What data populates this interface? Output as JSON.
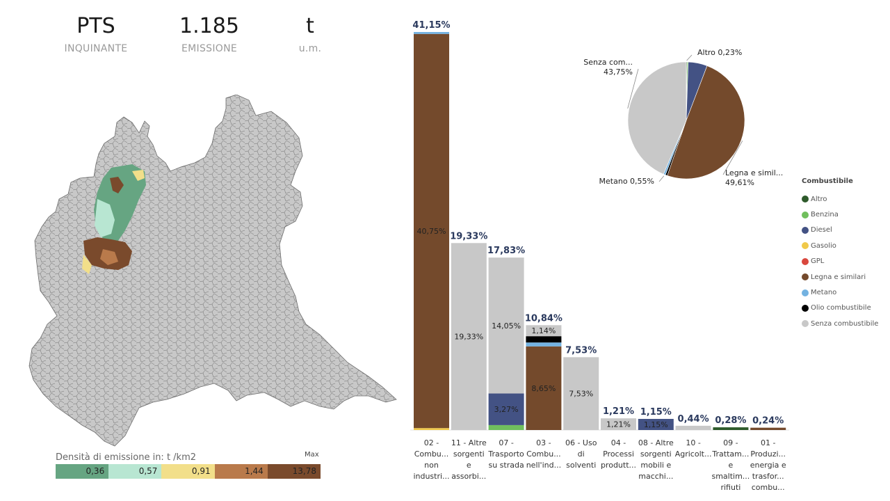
{
  "kpis": [
    {
      "value": "PTS",
      "label": "INQUINANTE"
    },
    {
      "value": "1.185",
      "label": "EMISSIONE"
    },
    {
      "value": "t",
      "label": "u.m."
    }
  ],
  "density_legend": {
    "title": "Densità di emissione in:  t /km2",
    "max_label": "Max",
    "bins": [
      {
        "value": "0,36",
        "color": "#66a582"
      },
      {
        "value": "0,57",
        "color": "#b8e6d2"
      },
      {
        "value": "0,91",
        "color": "#f2df8a"
      },
      {
        "value": "1,44",
        "color": "#b97a4b"
      },
      {
        "value": "13,78",
        "color": "#7a4a2c"
      }
    ]
  },
  "colors": {
    "Altro": "#2e5a2b",
    "Benzina": "#70bf5d",
    "Diesel": "#435284",
    "Gasolio": "#f0c94a",
    "GPL": "#d9473d",
    "Legna e similari": "#744a2c",
    "Metano": "#73b2e1",
    "Olio combustibile": "#000000",
    "Senza combustibile": "#c8c8c8"
  },
  "combustibile_legend": {
    "title": "Combustibile",
    "items": [
      "Altro",
      "Benzina",
      "Diesel",
      "Gasolio",
      "GPL",
      "Legna e similari",
      "Metano",
      "Olio combustibile",
      "Senza combustibile"
    ]
  },
  "chart_data": [
    {
      "type": "bar",
      "stacked": true,
      "ylim": [
        0,
        41.15
      ],
      "categories": [
        [
          "02 -",
          "Combu...",
          "non",
          "industri..."
        ],
        [
          "11 - Altre",
          "sorgenti",
          "e",
          "assorbi..."
        ],
        [
          "07 -",
          "Trasporto",
          "su strada"
        ],
        [
          "03 -",
          "Combu...",
          "nell'ind..."
        ],
        [
          "06 - Uso",
          "di",
          "solventi"
        ],
        [
          "04 -",
          "Processi",
          "produtt..."
        ],
        [
          "08 - Altre",
          "sorgenti",
          "mobili e",
          "macchi..."
        ],
        [
          "10 -",
          "Agricolt..."
        ],
        [
          "09 -",
          "Trattam...",
          "e",
          "smaltim...",
          "rifiuti"
        ],
        [
          "01 -",
          "Produzi...",
          "energia e",
          "trasfor...",
          "combu..."
        ]
      ],
      "totals": [
        "41,15%",
        "19,33%",
        "17,83%",
        "10,84%",
        "7,53%",
        "1,21%",
        "1,15%",
        "0,44%",
        "0,28%",
        "0,24%"
      ],
      "total_values": [
        41.15,
        19.33,
        17.83,
        10.84,
        7.53,
        1.21,
        1.15,
        0.44,
        0.28,
        0.24
      ],
      "stacks": [
        [
          {
            "fuel": "Gasolio",
            "value": 0.2
          },
          {
            "fuel": "Legna e similari",
            "value": 40.75,
            "label": "40,75%"
          },
          {
            "fuel": "Metano",
            "value": 0.2
          }
        ],
        [
          {
            "fuel": "Senza combustibile",
            "value": 19.33,
            "label": "19,33%"
          }
        ],
        [
          {
            "fuel": "Benzina",
            "value": 0.51
          },
          {
            "fuel": "Diesel",
            "value": 3.27,
            "label": "3,27%"
          },
          {
            "fuel": "Senza combustibile",
            "value": 14.05,
            "label": "14,05%"
          }
        ],
        [
          {
            "fuel": "Legna e similari",
            "value": 8.65,
            "label": "8,65%"
          },
          {
            "fuel": "Metano",
            "value": 0.4
          },
          {
            "fuel": "Olio combustibile",
            "value": 0.65
          },
          {
            "fuel": "Senza combustibile",
            "value": 1.14,
            "label": "1,14%"
          }
        ],
        [
          {
            "fuel": "Senza combustibile",
            "value": 7.53,
            "label": "7,53%"
          }
        ],
        [
          {
            "fuel": "Senza combustibile",
            "value": 1.21,
            "label": "1,21%"
          }
        ],
        [
          {
            "fuel": "Diesel",
            "value": 1.15,
            "label": "1,15%"
          }
        ],
        [
          {
            "fuel": "Senza combustibile",
            "value": 0.44
          }
        ],
        [
          {
            "fuel": "Altro",
            "value": 0.28
          }
        ],
        [
          {
            "fuel": "Legna e similari",
            "value": 0.24
          }
        ]
      ]
    },
    {
      "type": "pie",
      "slices": [
        {
          "name": "Altro",
          "value": 0.23,
          "label": "Altro 0,23%"
        },
        {
          "name": "Benzina",
          "value": 0.3
        },
        {
          "name": "Diesel",
          "value": 5.3
        },
        {
          "name": "Legna e similari",
          "value": 49.61,
          "label": "Legna e simil...",
          "pct": "49,61%"
        },
        {
          "name": "Olio combustibile",
          "value": 0.56
        },
        {
          "name": "Metano",
          "value": 0.55,
          "label": "Metano 0,55%"
        },
        {
          "name": "Senza combustibile",
          "value": 43.75,
          "label": "Senza com...",
          "pct": "43,75%"
        }
      ]
    }
  ]
}
